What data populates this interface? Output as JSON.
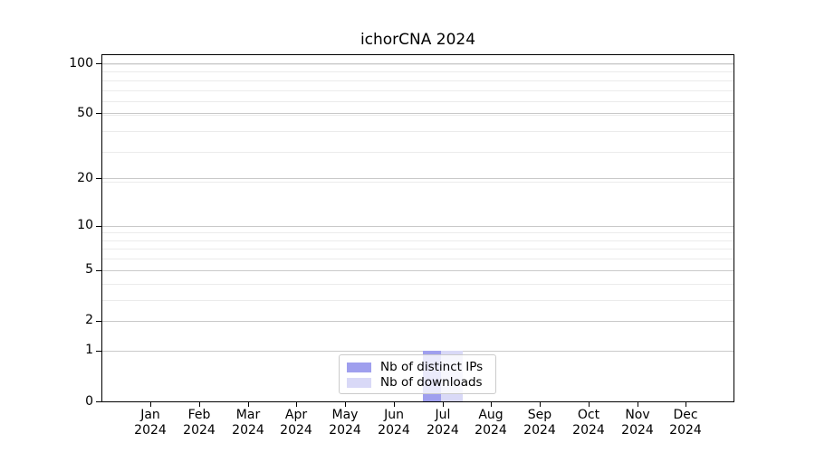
{
  "chart_data": {
    "type": "bar",
    "title": "ichorCNA 2024",
    "x": {
      "months": [
        "Jan",
        "Feb",
        "Mar",
        "Apr",
        "May",
        "Jun",
        "Jul",
        "Aug",
        "Sep",
        "Oct",
        "Nov",
        "Dec"
      ],
      "year": "2024"
    },
    "series": [
      {
        "name": "Nb of distinct IPs",
        "color": "#9f9fee",
        "values": [
          0,
          0,
          0,
          0,
          0,
          0,
          1,
          0,
          0,
          0,
          0,
          0
        ]
      },
      {
        "name": "Nb of downloads",
        "color": "#d9d9f7",
        "values": [
          0,
          0,
          0,
          0,
          0,
          0,
          1,
          0,
          0,
          0,
          0,
          0
        ]
      }
    ],
    "y_axis": {
      "scale": "log1p",
      "tick_labels": [
        "100",
        "50",
        "20",
        "10",
        "5",
        "2",
        "1",
        "0"
      ],
      "tick_values": [
        100,
        50,
        20,
        10,
        5,
        2,
        1,
        0
      ],
      "minor_grid_values": [
        1,
        2,
        3,
        4,
        5,
        6,
        7,
        8,
        9,
        19,
        29,
        39,
        49,
        59,
        69,
        79,
        89,
        99
      ],
      "ylim": [
        0,
        113
      ]
    },
    "legend": {
      "position": "lower center"
    },
    "grid": {
      "orientation": "horizontal",
      "major_color": "#c9c9c9",
      "minor_color": "#ebebeb"
    },
    "colors": {
      "spine": "#000000",
      "legend_border": "#cbcbcb",
      "text": "#000000",
      "background": "#ffffff"
    }
  }
}
